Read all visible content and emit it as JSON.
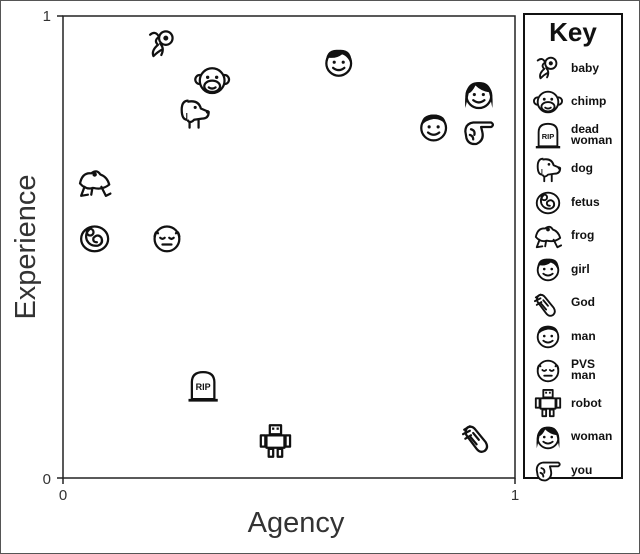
{
  "chart_data": {
    "type": "scatter",
    "title": "",
    "xlabel": "Agency",
    "ylabel": "Experience",
    "xlim": [
      0,
      1
    ],
    "ylim": [
      0,
      1
    ],
    "x_ticks": [
      "0",
      "1"
    ],
    "y_ticks": [
      "0",
      "1"
    ],
    "grid": false,
    "legend": {
      "title": "Key",
      "placement": "right",
      "entries": [
        {
          "label": "baby",
          "icon": "baby-icon"
        },
        {
          "label": "chimp",
          "icon": "chimp-icon"
        },
        {
          "label": "dead\nwoman",
          "icon": "dead-woman-icon"
        },
        {
          "label": "dog",
          "icon": "dog-icon"
        },
        {
          "label": "fetus",
          "icon": "fetus-icon"
        },
        {
          "label": "frog",
          "icon": "frog-icon"
        },
        {
          "label": "girl",
          "icon": "girl-icon"
        },
        {
          "label": "God",
          "icon": "god-icon"
        },
        {
          "label": "man",
          "icon": "man-icon"
        },
        {
          "label": "PVS\nman",
          "icon": "pvs-man-icon"
        },
        {
          "label": "robot",
          "icon": "robot-icon"
        },
        {
          "label": "woman",
          "icon": "woman-icon"
        },
        {
          "label": "you",
          "icon": "you-icon"
        }
      ]
    },
    "points": [
      {
        "name": "baby",
        "icon": "baby-icon",
        "x": 0.22,
        "y": 0.94
      },
      {
        "name": "chimp",
        "icon": "chimp-icon",
        "x": 0.33,
        "y": 0.86
      },
      {
        "name": "dog",
        "icon": "dog-icon",
        "x": 0.29,
        "y": 0.79
      },
      {
        "name": "girl",
        "icon": "girl-icon",
        "x": 0.61,
        "y": 0.9
      },
      {
        "name": "woman",
        "icon": "woman-icon",
        "x": 0.92,
        "y": 0.83
      },
      {
        "name": "man",
        "icon": "man-icon",
        "x": 0.82,
        "y": 0.76
      },
      {
        "name": "you",
        "icon": "you-icon",
        "x": 0.92,
        "y": 0.75
      },
      {
        "name": "frog",
        "icon": "frog-icon",
        "x": 0.07,
        "y": 0.64
      },
      {
        "name": "fetus",
        "icon": "fetus-icon",
        "x": 0.07,
        "y": 0.52
      },
      {
        "name": "PVS man",
        "icon": "pvs-man-icon",
        "x": 0.23,
        "y": 0.52
      },
      {
        "name": "dead woman",
        "icon": "dead-woman-icon",
        "x": 0.31,
        "y": 0.2
      },
      {
        "name": "robot",
        "icon": "robot-icon",
        "x": 0.47,
        "y": 0.08
      },
      {
        "name": "God",
        "icon": "god-icon",
        "x": 0.92,
        "y": 0.09
      }
    ]
  }
}
